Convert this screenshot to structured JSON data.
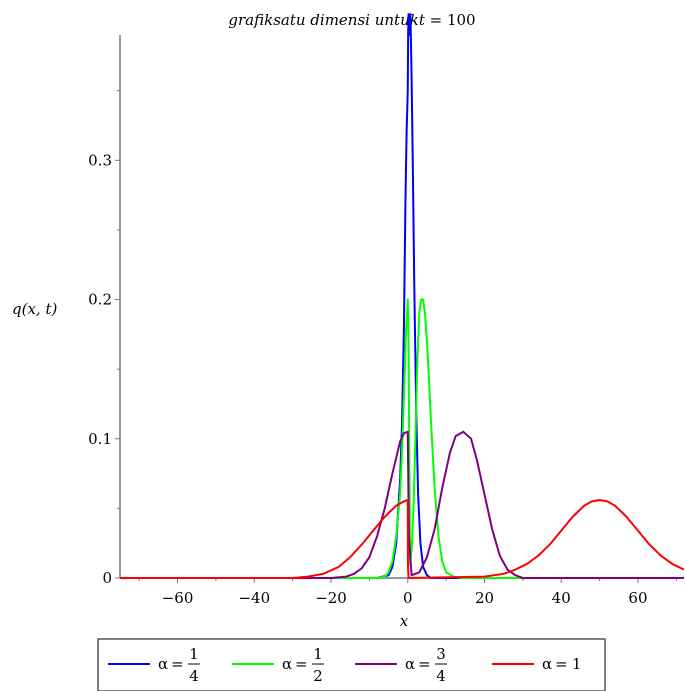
{
  "chart_data": {
    "type": "line",
    "title": "grafiksatu dimensi untukt = 100",
    "title_parts": {
      "italic": "grafiksatu dimensi untukt",
      "equals": " = ",
      "value": "100"
    },
    "xlabel": "x",
    "ylabel": "q(x, t)",
    "xlim": [
      -75,
      72
    ],
    "ylim": [
      0,
      0.39
    ],
    "x_ticks": [
      -60,
      -40,
      -20,
      0,
      20,
      40,
      60
    ],
    "x_tick_labels": [
      "−60",
      "−40",
      "−20",
      "0",
      "20",
      "40",
      "60"
    ],
    "y_ticks": [
      0,
      0.1,
      0.2,
      0.3
    ],
    "y_tick_labels": [
      "0",
      "0.1",
      "0.2",
      "0.3"
    ],
    "grid": false,
    "legend_position": "bottom",
    "series": [
      {
        "name": "α = 1/4",
        "legend": {
          "symbol": "α",
          "eq": "=",
          "num": "1",
          "den": "4"
        },
        "color": "#0000ff",
        "x": [
          -75,
          -8,
          -5,
          -4,
          -3,
          -2,
          -1.5,
          -1,
          -0.6,
          -0.3,
          -0.15,
          0,
          0.1,
          0.2,
          0.35,
          0.5,
          0.65,
          0.8,
          1,
          1.3,
          1.7,
          2.2,
          2.7,
          3.3,
          4,
          5,
          6,
          8,
          72
        ],
        "y": [
          0,
          0,
          0.002,
          0.008,
          0.025,
          0.07,
          0.11,
          0.18,
          0.27,
          0.32,
          0.335,
          0.35,
          0.39,
          0.405,
          0.39,
          0.4,
          0.405,
          0.39,
          0.36,
          0.3,
          0.21,
          0.12,
          0.06,
          0.025,
          0.008,
          0.002,
          0,
          0,
          0
        ]
      },
      {
        "name": "α = 1/2",
        "legend": {
          "symbol": "α",
          "eq": "=",
          "num": "1",
          "den": "2"
        },
        "color": "#00ff00",
        "x": [
          -75,
          -8,
          -6,
          -5,
          -4,
          -3,
          -2,
          -1.5,
          -1,
          -0.5,
          0,
          0.2,
          0.6,
          1,
          1.5,
          2,
          2.5,
          3,
          3.5,
          4,
          4.5,
          5,
          5.5,
          6,
          7,
          8,
          9,
          10,
          12,
          14,
          72
        ],
        "y": [
          0,
          0,
          0.001,
          0.004,
          0.012,
          0.03,
          0.06,
          0.09,
          0.13,
          0.175,
          0.2,
          0.17,
          0.01,
          0.02,
          0.05,
          0.1,
          0.155,
          0.19,
          0.2,
          0.2,
          0.19,
          0.17,
          0.145,
          0.115,
          0.065,
          0.03,
          0.012,
          0.004,
          0.001,
          0,
          0
        ]
      },
      {
        "name": "α = 3/4",
        "legend": {
          "symbol": "α",
          "eq": "=",
          "num": "3",
          "den": "4"
        },
        "color": "#800080",
        "x": [
          -75,
          -20,
          -16,
          -14,
          -12,
          -10,
          -8,
          -6,
          -4,
          -2,
          -1,
          0,
          0.3,
          1,
          3,
          5,
          7,
          9,
          11,
          12.5,
          14.5,
          16.5,
          18,
          20,
          22,
          24,
          26,
          28,
          30,
          72
        ],
        "y": [
          0,
          0,
          0.001,
          0.003,
          0.007,
          0.015,
          0.03,
          0.05,
          0.075,
          0.098,
          0.104,
          0.105,
          0.03,
          0.002,
          0.004,
          0.015,
          0.035,
          0.065,
          0.09,
          0.102,
          0.105,
          0.1,
          0.085,
          0.06,
          0.035,
          0.016,
          0.006,
          0.002,
          0,
          0
        ]
      },
      {
        "name": "α = 1",
        "legend": {
          "symbol": "α",
          "eq": "=",
          "num": "",
          "den": "",
          "value": "1"
        },
        "color": "#ff0000",
        "x": [
          -75,
          -30,
          -26,
          -22,
          -18,
          -15,
          -12,
          -9,
          -6,
          -3,
          -1,
          0,
          0.05,
          0.2,
          20,
          25,
          28,
          31,
          34,
          37,
          40,
          43,
          46,
          48,
          50,
          52,
          54,
          57,
          60,
          63,
          66,
          69,
          72
        ],
        "y": [
          0,
          0,
          0.001,
          0.003,
          0.008,
          0.015,
          0.024,
          0.034,
          0.044,
          0.052,
          0.055,
          0.056,
          0.01,
          0,
          0.001,
          0.003,
          0.006,
          0.01,
          0.016,
          0.024,
          0.034,
          0.044,
          0.052,
          0.055,
          0.056,
          0.055,
          0.052,
          0.044,
          0.034,
          0.024,
          0.016,
          0.01,
          0.006
        ]
      }
    ]
  }
}
